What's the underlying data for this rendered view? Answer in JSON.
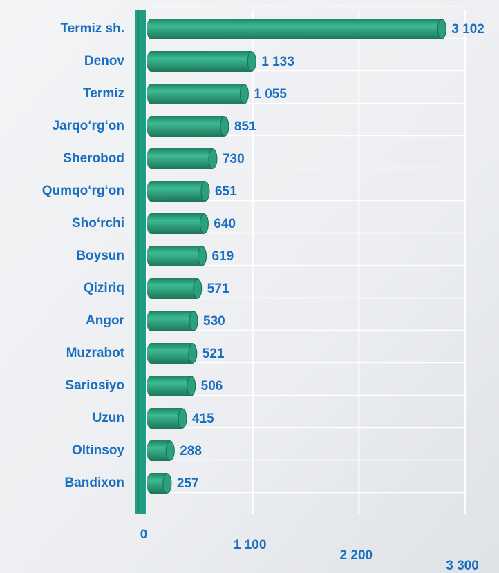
{
  "chart_data": {
    "type": "bar",
    "orientation": "horizontal",
    "categories": [
      "Termiz sh.",
      "Denov",
      "Termiz",
      "Jarqo‘rg‘on",
      "Sherobod",
      "Qumqo‘rg‘on",
      "Sho‘rchi",
      "Boysun",
      "Qiziriq",
      "Angor",
      "Muzrabot",
      "Sariosiyo",
      "Uzun",
      "Oltinsoy",
      "Bandixon"
    ],
    "values": [
      3102,
      1133,
      1055,
      851,
      730,
      651,
      640,
      619,
      571,
      530,
      521,
      506,
      415,
      288,
      257
    ],
    "value_labels": [
      "3 102",
      "1 133",
      "1 055",
      "851",
      "730",
      "651",
      "640",
      "619",
      "571",
      "530",
      "521",
      "506",
      "415",
      "288",
      "257"
    ],
    "color": "#2a9c7c",
    "xlim": [
      0,
      3300
    ],
    "xticks": [
      0,
      {
        "value": 1100,
        "label": "1 100"
      },
      {
        "value": 2200,
        "label": "2 200"
      },
      {
        "value": 3300,
        "label": "3 300"
      }
    ],
    "grid": true
  }
}
